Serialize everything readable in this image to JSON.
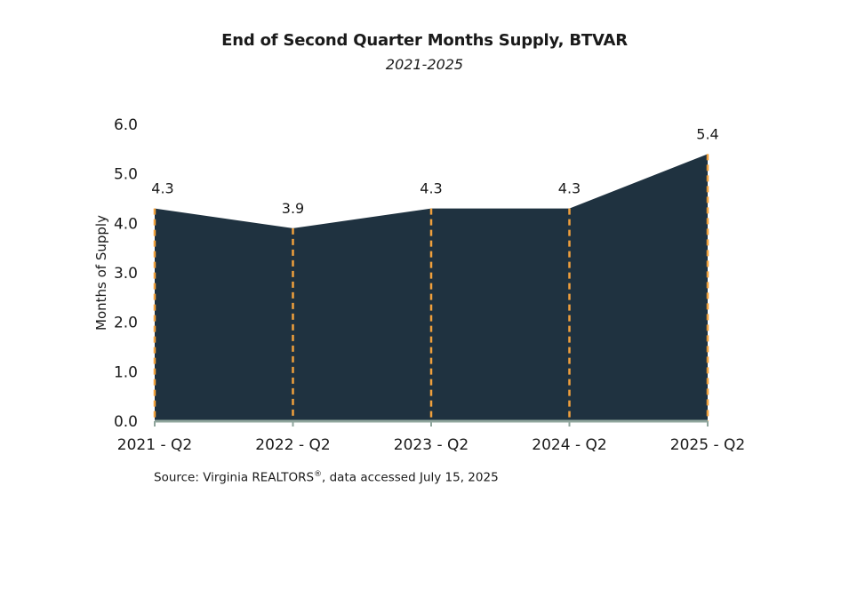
{
  "chart_data": {
    "type": "area",
    "title": "End of Second Quarter Months Supply, BTVAR",
    "subtitle": "2021-2025",
    "ylabel": "Months of Supply",
    "xlabel": "",
    "categories": [
      "2021 - Q2",
      "2022 - Q2",
      "2023 - Q2",
      "2024 - Q2",
      "2025 - Q2"
    ],
    "values": [
      4.3,
      3.9,
      4.3,
      4.3,
      5.4
    ],
    "ylim": [
      0,
      6
    ],
    "yticks": [
      "0.0",
      "1.0",
      "2.0",
      "3.0",
      "4.0",
      "5.0",
      "6.0"
    ],
    "grid": false,
    "colors": {
      "area": "#1f3240",
      "drop_lines": "#f0a03c",
      "axis": "#8fa59c"
    }
  },
  "source": {
    "prefix": "Source: Virginia REALTORS",
    "reg_mark": "®",
    "suffix": ", data accessed July 15, 2025"
  }
}
